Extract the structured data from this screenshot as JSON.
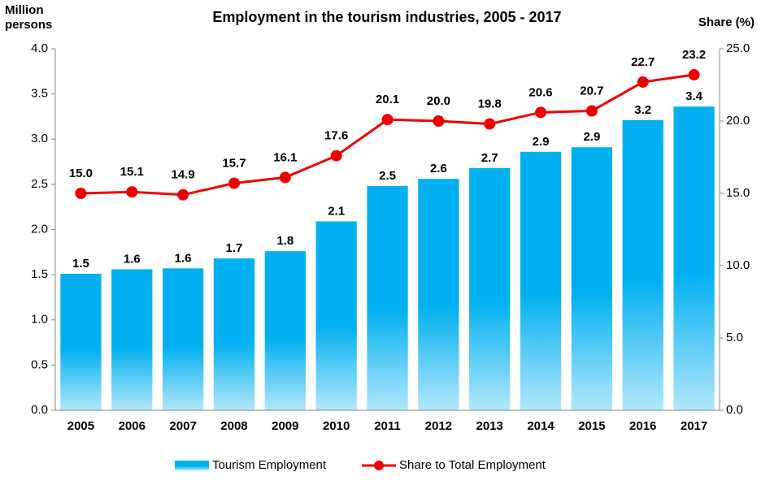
{
  "chart_data": {
    "type": "bar",
    "title": "Employment in the tourism industries, 2005 - 2017",
    "y_label": "Million persons",
    "y2_label": "Share (%)",
    "categories": [
      "2005",
      "2006",
      "2007",
      "2008",
      "2009",
      "2010",
      "2011",
      "2012",
      "2013",
      "2014",
      "2015",
      "2016",
      "2017"
    ],
    "series": [
      {
        "name": "Tourism Employment",
        "type": "bar",
        "color": "#00b0f0",
        "values": [
          1.51,
          1.56,
          1.57,
          1.68,
          1.76,
          2.09,
          2.48,
          2.56,
          2.68,
          2.86,
          2.91,
          3.21,
          3.36
        ],
        "value_labels": [
          "1.5",
          "1.6",
          "1.6",
          "1.7",
          "1.8",
          "2.1",
          "2.5",
          "2.6",
          "2.7",
          "2.9",
          "2.9",
          "3.2",
          "3.4"
        ]
      },
      {
        "name": "Share to Total Employment",
        "type": "line",
        "axis": "y2",
        "color": "#ee0000",
        "values": [
          15.0,
          15.1,
          14.9,
          15.7,
          16.1,
          17.6,
          20.1,
          20.0,
          19.8,
          20.6,
          20.7,
          22.7,
          23.2
        ],
        "value_labels": [
          "15.0",
          "15.1",
          "14.9",
          "15.7",
          "16.1",
          "17.6",
          "20.1",
          "20.0",
          "19.8",
          "20.6",
          "20.7",
          "22.7",
          "23.2"
        ]
      }
    ],
    "ylim": [
      0,
      4
    ],
    "yticks": [
      {
        "value": 0,
        "label": "0.0"
      },
      0.5,
      {
        "value": 1,
        "label": "1.0"
      },
      1.5,
      {
        "value": 2,
        "label": "2.0"
      },
      2.5,
      {
        "value": 3,
        "label": "3.0"
      },
      3.5,
      {
        "value": 4,
        "label": "4.0"
      }
    ],
    "y2lim": [
      0,
      25
    ],
    "y2ticks": [
      {
        "value": 0,
        "label": "0.0"
      },
      {
        "value": 5,
        "label": "5.0"
      },
      {
        "value": 10,
        "label": "10.0"
      },
      {
        "value": 15,
        "label": "15.0"
      },
      {
        "value": 20,
        "label": "20.0"
      },
      {
        "value": 25,
        "label": "25.0"
      }
    ],
    "grid": false,
    "legend": "bottom"
  }
}
